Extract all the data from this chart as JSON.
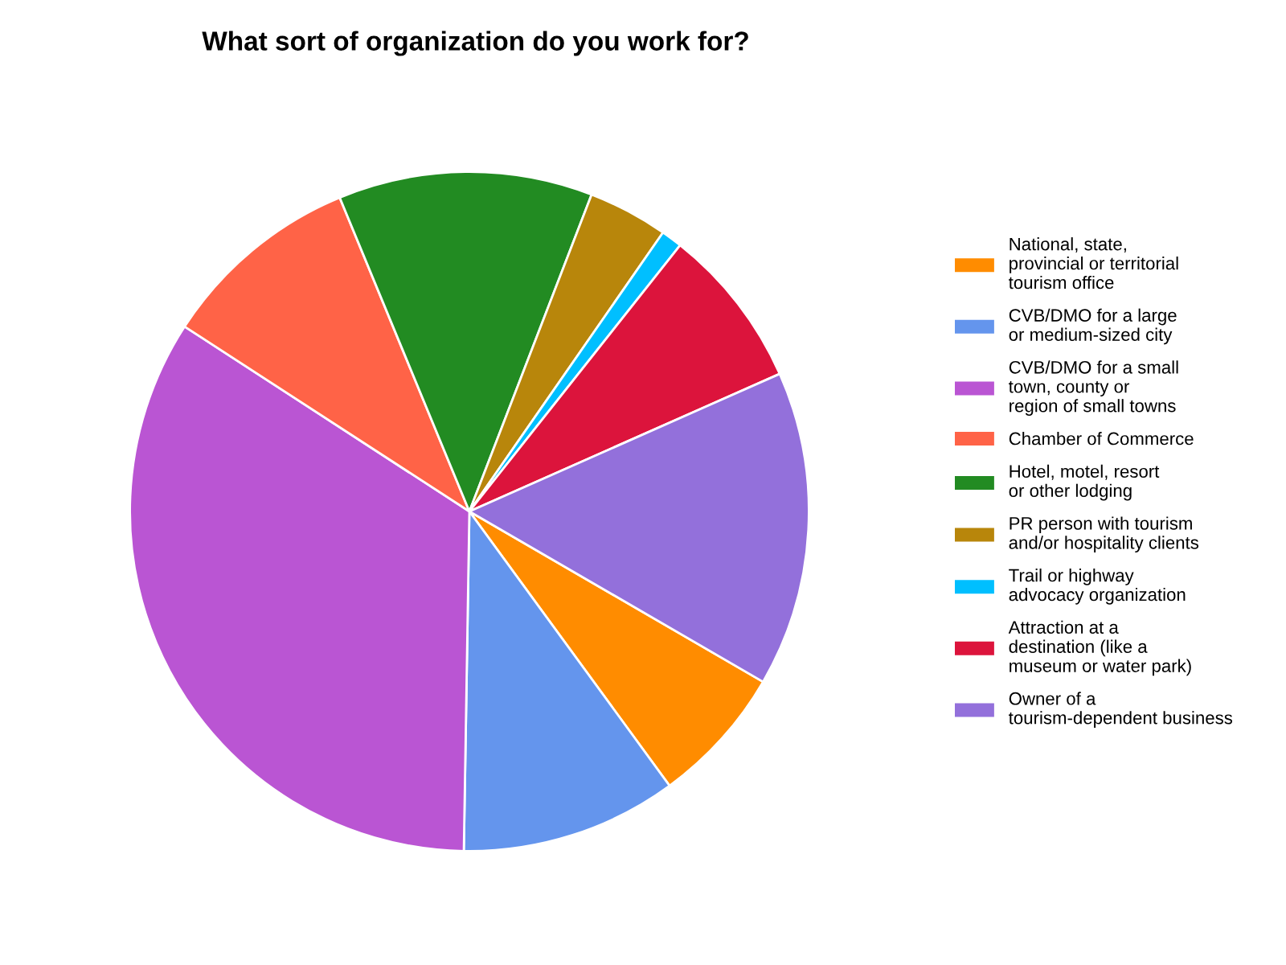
{
  "chart_data": {
    "type": "pie",
    "title": "What sort of organization do you work for?",
    "categories": [
      "National, state,\nprovincial or territorial\ntourism office",
      "CVB/DMO for a large\nor medium-sized city",
      "CVB/DMO for a small\ntown, county or\nregion of small towns",
      "Chamber of Commerce",
      "Hotel, motel, resort\nor other lodging",
      "PR person with tourism\nand/or hospitality clients",
      "Trail or highway\nadvocacy organization",
      "Attraction at a\ndestination (like a\nmuseum or water park)",
      "Owner of a\ntourism-dependent business"
    ],
    "values": [
      6.6,
      10.3,
      33.9,
      9.6,
      12.1,
      3.8,
      1.0,
      7.7,
      15.0
    ],
    "colors": [
      "#ff8c00",
      "#6495ed",
      "#ba55d3",
      "#ff6347",
      "#228b22",
      "#b8860b",
      "#00bfff",
      "#dc143c",
      "#9370db"
    ],
    "legend": "right"
  }
}
